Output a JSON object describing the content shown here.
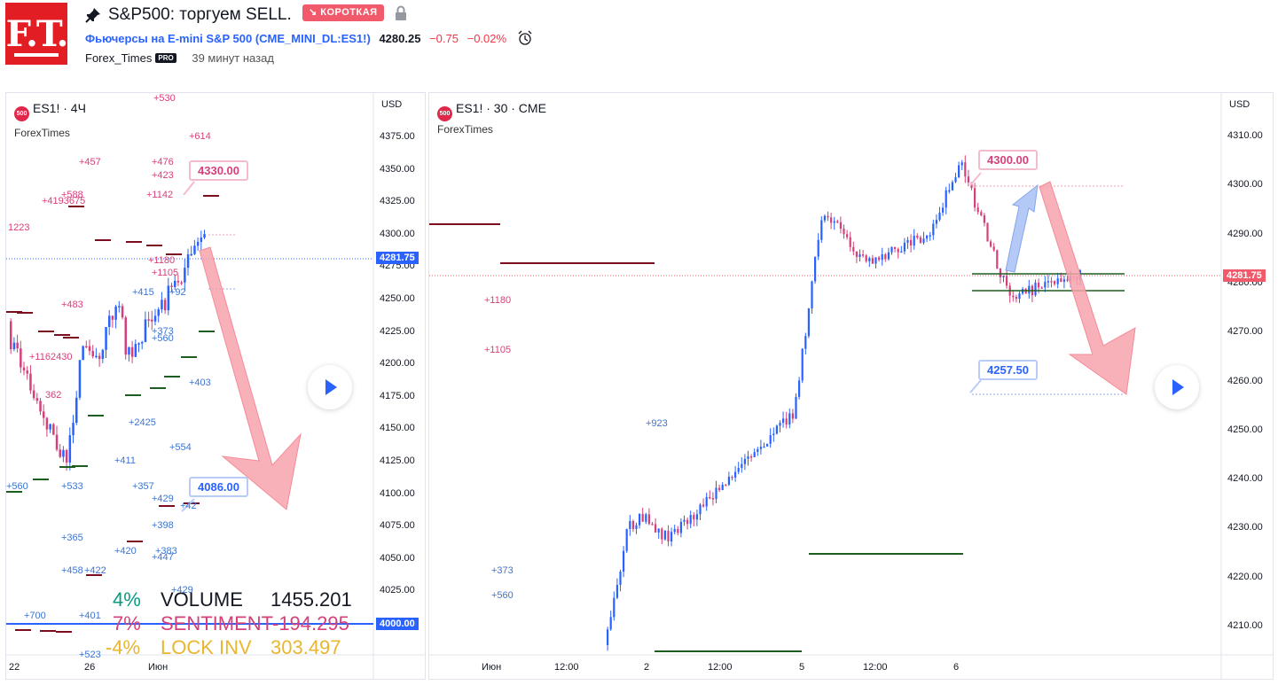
{
  "header": {
    "logo_text": "F.T.",
    "pin_icon": "pin-icon",
    "title": "S&P500: торгуем SELL.",
    "badge": "↘ КОРОТКАЯ",
    "lock_icon": "lock-icon",
    "instrument": "Фьючерсы на E-mini S&P 500",
    "symbol": "(CME_MINI_DL:ES1!)",
    "price": "4280.25",
    "change": "−0.75",
    "change_pct": "−0.02%",
    "alarm_icon": "alarm-clock-icon",
    "author": "Forex_Times",
    "pro_badge": "PRO",
    "published": "39 минут назад"
  },
  "left_chart": {
    "symbol_badge": "500",
    "legend": "ES1! · 4Ч",
    "source": "ForexTimes",
    "currency": "USD",
    "y_ticks": [
      "4375.00",
      "4350.00",
      "4325.00",
      "4300.00",
      "4275.00",
      "4250.00",
      "4225.00",
      "4200.00",
      "4175.00",
      "4150.00",
      "4125.00",
      "4100.00",
      "4075.00",
      "4050.00",
      "4025.00"
    ],
    "x_ticks": [
      "22",
      "26",
      "Июн"
    ],
    "last_price": "4281.75",
    "level_tag": "4000.00",
    "callout_top": "4330.00",
    "callout_bottom": "4086.00",
    "stats": [
      {
        "pct": "4%",
        "name": "VOLUME",
        "value": "1455.201",
        "color": "#089981"
      },
      {
        "pct": "7%",
        "name": "SENTIMENT",
        "value": "-194.295",
        "color": "#d6407a"
      },
      {
        "pct": "-4%",
        "name": "LOCK INV",
        "value": "303.497",
        "color": "#e8b630"
      }
    ],
    "pink_labels": [
      {
        "t": "+530"
      },
      {
        "t": "+614"
      },
      {
        "t": "+457"
      },
      {
        "t": "+476"
      },
      {
        "t": "+423"
      },
      {
        "t": "+588"
      },
      {
        "t": "+1142"
      },
      {
        "t": "+4193675"
      },
      {
        "t": "1223"
      },
      {
        "t": "+1180"
      },
      {
        "t": "+1105"
      },
      {
        "t": "+483"
      },
      {
        "t": "+1162430"
      },
      {
        "t": "362"
      }
    ],
    "blue_labels": [
      {
        "t": "+415"
      },
      {
        "t": "+92"
      },
      {
        "t": "+373"
      },
      {
        "t": "+560"
      },
      {
        "t": "+403"
      },
      {
        "t": "+2425"
      },
      {
        "t": "+554"
      },
      {
        "t": "+411"
      },
      {
        "t": "+560"
      },
      {
        "t": "+533"
      },
      {
        "t": "+357"
      },
      {
        "t": "+429"
      },
      {
        "t": "+42"
      },
      {
        "t": "+398"
      },
      {
        "t": "+365"
      },
      {
        "t": "+420"
      },
      {
        "t": "+383"
      },
      {
        "t": "+447"
      },
      {
        "t": "+458"
      },
      {
        "t": "+422"
      },
      {
        "t": "+429"
      },
      {
        "t": "+700"
      },
      {
        "t": "+401"
      },
      {
        "t": "+523"
      }
    ]
  },
  "right_chart": {
    "symbol_badge": "500",
    "legend": "ES1! · 30 · CME",
    "source": "ForexTimes",
    "currency": "USD",
    "y_ticks": [
      "4310.00",
      "4300.00",
      "4290.00",
      "4280.00",
      "4270.00",
      "4260.00",
      "4250.00",
      "4240.00",
      "4230.00",
      "4220.00",
      "4210.00"
    ],
    "x_ticks": [
      "Июн",
      "12:00",
      "2",
      "12:00",
      "5",
      "12:00",
      "6"
    ],
    "last_price": "4281.75",
    "callout_top": "4300.00",
    "callout_bottom": "4257.50",
    "pink_labels": [
      {
        "t": "+1180"
      },
      {
        "t": "+1105"
      }
    ],
    "blue_labels": [
      {
        "t": "+923"
      },
      {
        "t": "+373"
      },
      {
        "t": "+560"
      }
    ]
  },
  "colors": {
    "up": "#2962ff",
    "down": "#d6407a",
    "support": "#1b5e20",
    "resistance": "#7b0d1e",
    "arrow_down": "#f7a3ab",
    "arrow_up": "#a8c0f5",
    "last_price": "#2962ff",
    "last_price_right": "#f05a6a"
  }
}
